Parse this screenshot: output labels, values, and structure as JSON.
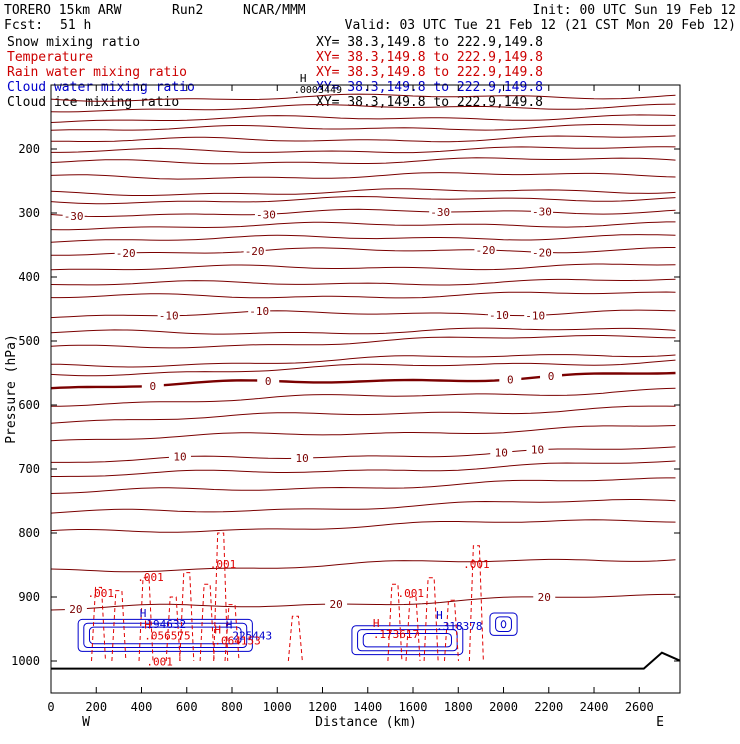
{
  "header": {
    "model": "TORERO 15km ARW",
    "run": "Run2",
    "org": "NCAR/MMM",
    "init": "Init: 00 UTC Sun 19 Feb 12",
    "fcst_label": "Fcst:",
    "fcst_value": "51 h",
    "valid": "Valid: 03 UTC Tue 21 Feb 12 (21 CST Mon 20 Feb 12)"
  },
  "fields": [
    {
      "name": "Snow mixing ratio",
      "color": "#000000",
      "xy": ""
    },
    {
      "name": "Temperature",
      "color": "#cc0000",
      "xy": "XY=  38.3,149.8 to 222.9,149.8"
    },
    {
      "name": "Rain water mixing ratio",
      "color": "#cc0000",
      "xy": "XY=  38.3,149.8 to 222.9,149.8"
    },
    {
      "name": "Cloud water mixing ratio",
      "color": "#0000cc",
      "xy": "XY=  38.3,149.8 to 222.9,149.8"
    },
    {
      "name": "Cloud ice mixing ratio",
      "color": "#000000",
      "xy": "XY=  38.3,149.8 to 222.9,149.8"
    }
  ],
  "first_xy": "XY=  38.3,149.8 to 222.9,149.8",
  "colors": {
    "temperature": "#7a0000",
    "rain": "#e00000",
    "cloud_water": "#0000cc",
    "terrain": "#000000",
    "axis": "#000000"
  },
  "chart_data": {
    "type": "cross-section contour",
    "xlabel": "Distance (km)",
    "ylabel": "Pressure (hPa)",
    "xlim": [
      0,
      2780
    ],
    "ylim": [
      1050,
      100
    ],
    "x_ticks": [
      0,
      200,
      400,
      600,
      800,
      1000,
      1200,
      1400,
      1600,
      1800,
      2000,
      2200,
      2400,
      2600
    ],
    "y_ticks": [
      200,
      300,
      400,
      500,
      600,
      700,
      800,
      900,
      1000
    ],
    "left_end": "W",
    "right_end": "E",
    "temperature_contours": [
      {
        "level": -30,
        "base": 302,
        "labels_at": [
          100,
          950,
          1720,
          2170
        ],
        "label": "-30"
      },
      {
        "level": -20,
        "base": 362,
        "labels_at": [
          330,
          900,
          1920,
          2170
        ],
        "label": "-20"
      },
      {
        "level": -10,
        "base": 460,
        "labels_at": [
          520,
          920,
          1980,
          2140
        ],
        "label": "-10"
      },
      {
        "level": 0,
        "base": 573,
        "labels_at": [
          450,
          960,
          2030,
          2210
        ],
        "label": "0",
        "bold": true
      },
      {
        "level": 10,
        "base": 690,
        "labels_at": [
          570,
          1110,
          1990,
          2150
        ],
        "label": "10"
      },
      {
        "level": 20,
        "base": 920,
        "labels_at": [
          110,
          1260,
          2180
        ],
        "label": "20"
      }
    ],
    "temperature_unlabeled_bases": [
      122,
      138,
      155,
      170,
      188,
      205,
      222,
      245,
      270,
      282,
      322,
      342,
      388,
      412,
      432,
      488,
      512,
      540,
      552,
      598,
      625,
      655,
      712,
      738,
      770,
      800,
      860
    ],
    "rain_labels": [
      {
        "x": 220,
        "p": 900,
        "text": ".001"
      },
      {
        "x": 440,
        "p": 875,
        "text": ".001"
      },
      {
        "x": 760,
        "p": 855,
        "text": ".001"
      },
      {
        "x": 1590,
        "p": 900,
        "text": ".001"
      },
      {
        "x": 1880,
        "p": 855,
        "text": ".001"
      },
      {
        "x": 480,
        "p": 1007,
        "text": ".001"
      }
    ],
    "rain_maxima": [
      {
        "x": 430,
        "p": 960,
        "mark": "H",
        "value": ".056575"
      },
      {
        "x": 740,
        "p": 968,
        "mark": "H",
        "value": ".064153"
      },
      {
        "x": 1440,
        "p": 958,
        "mark": "H",
        "value": ".173617"
      }
    ],
    "cloud_water_maxima": [
      {
        "x": 410,
        "p": 942,
        "mark": "H",
        "value": ".194632"
      },
      {
        "x": 790,
        "p": 960,
        "mark": "H",
        "value": ".225443"
      },
      {
        "x": 1720,
        "p": 945,
        "mark": "H",
        "value": ".318378"
      }
    ],
    "snow_maximum": {
      "x": 1100,
      "p": 105,
      "mark": "H",
      "value": ".0003449"
    },
    "terrain_pressure": 1012
  }
}
